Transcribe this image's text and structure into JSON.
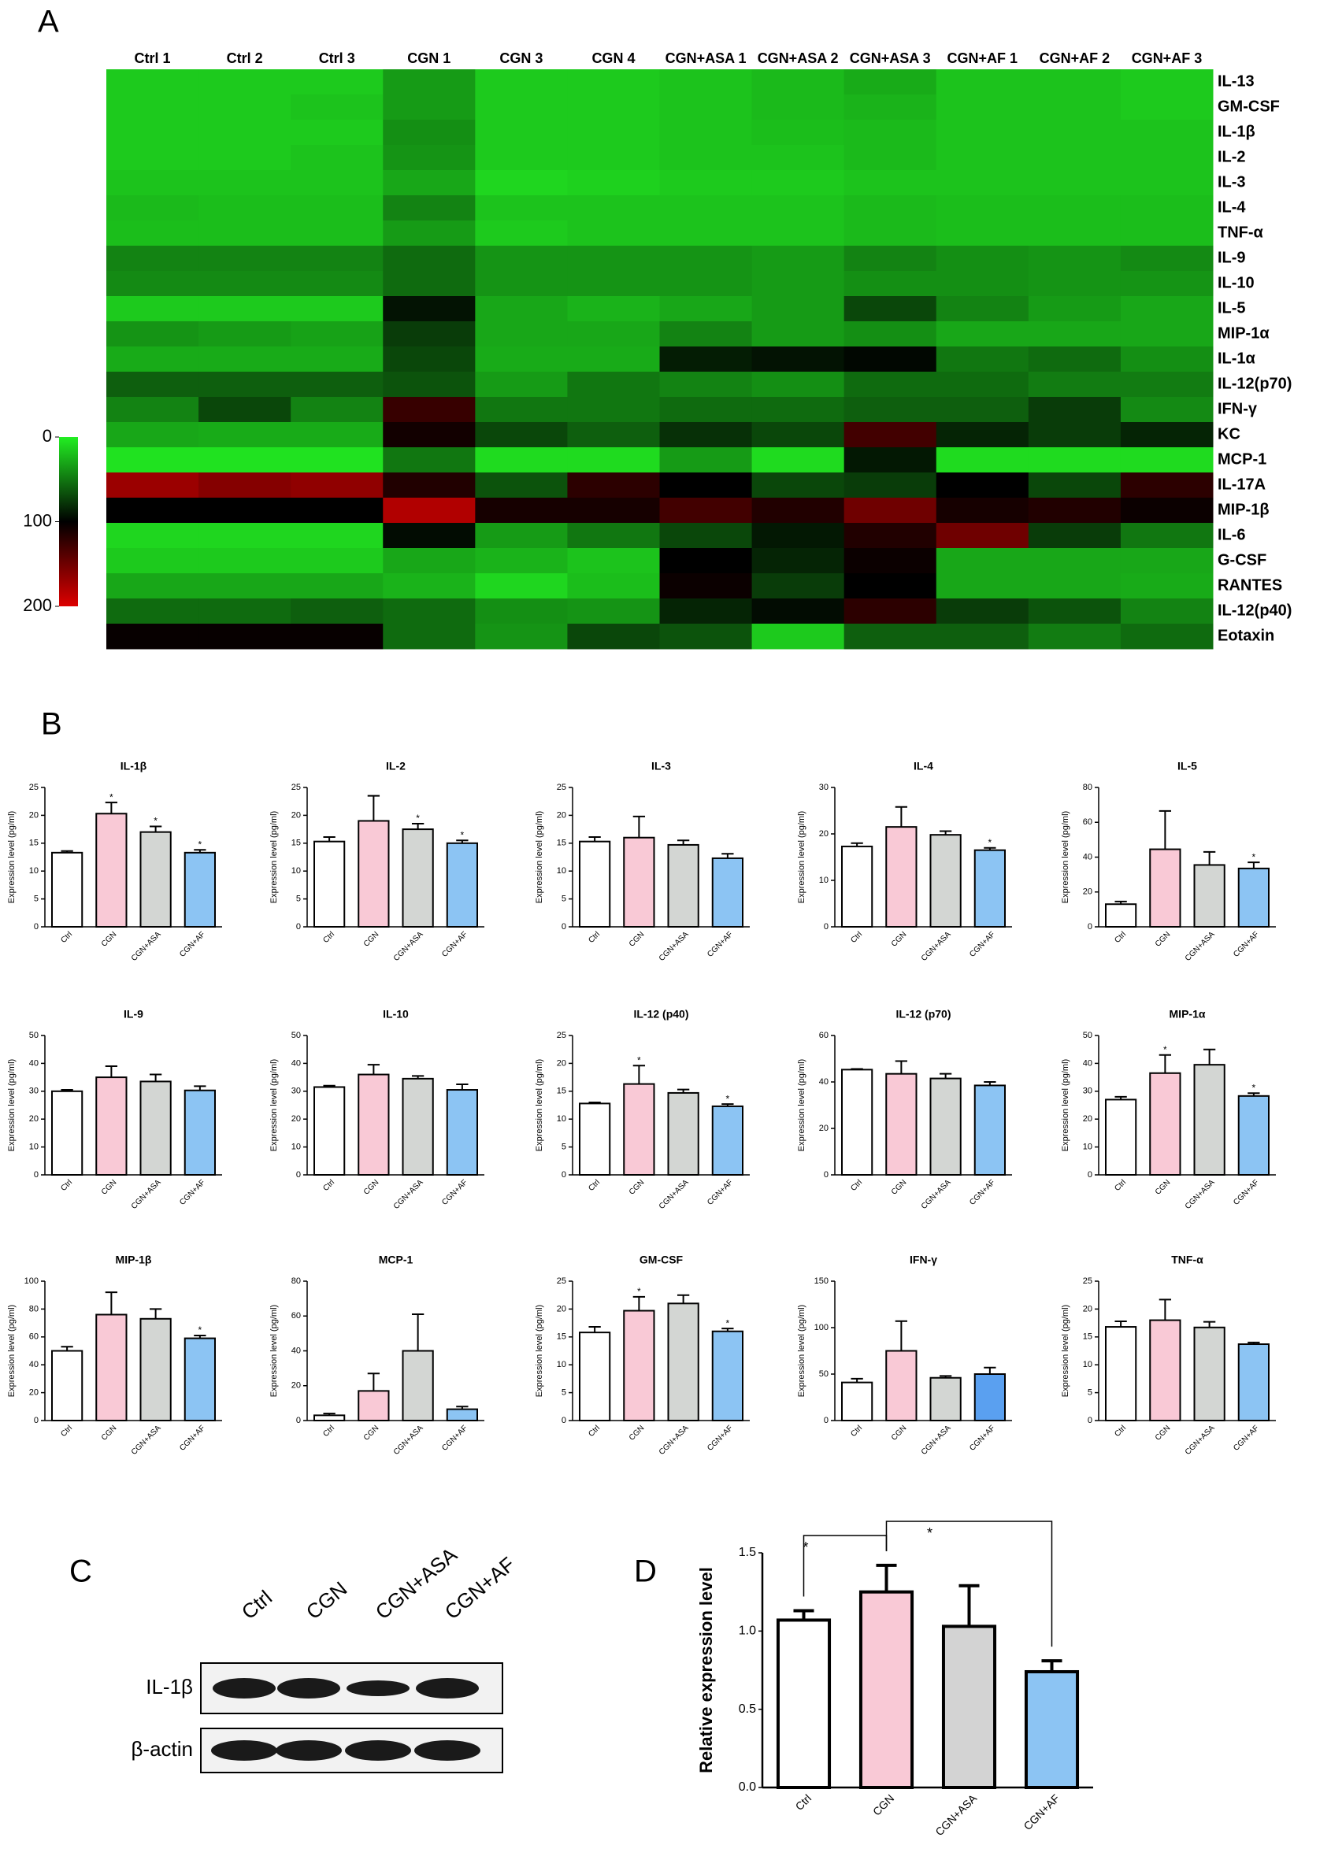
{
  "panel_labels": [
    "A",
    "B",
    "C",
    "D"
  ],
  "blot": {
    "lanes": [
      "Ctrl",
      "CGN",
      "CGN+ASA",
      "CGN+AF"
    ],
    "rows": [
      "IL-1β",
      "β-actin"
    ]
  },
  "chart_data": [
    {
      "type": "heatmap",
      "categories": [
        "Ctrl 1",
        "Ctrl  2",
        "Ctrl  3",
        "CGN 1",
        "CGN 3",
        "CGN 4",
        "CGN+ASA 1",
        "CGN+ASA 2",
        "CGN+ASA 3",
        "CGN+AF 1",
        "CGN+AF 2",
        "CGN+AF 3"
      ],
      "rows": [
        "IL-13",
        "GM-CSF",
        "IL-1β",
        "IL-2",
        "IL-3",
        "IL-4",
        "TNF-α",
        "IL-9",
        "IL-10",
        "IL-5",
        "MIP-1α",
        "IL-1α",
        "IL-12(p70)",
        "IFN-γ",
        "KC",
        "MCP-1",
        "IL-17A",
        "MIP-1β",
        "IL-6",
        "G-CSF",
        "RANTES",
        "IL-12(p40)",
        "Eotaxin"
      ],
      "values": [
        [
          15,
          15,
          15,
          35,
          15,
          15,
          18,
          22,
          28,
          18,
          18,
          15
        ],
        [
          15,
          15,
          18,
          35,
          15,
          15,
          18,
          22,
          25,
          18,
          18,
          15
        ],
        [
          15,
          15,
          15,
          40,
          15,
          15,
          18,
          20,
          22,
          18,
          18,
          18
        ],
        [
          15,
          15,
          18,
          38,
          15,
          15,
          18,
          18,
          22,
          18,
          18,
          18
        ],
        [
          18,
          18,
          18,
          30,
          10,
          12,
          15,
          15,
          18,
          18,
          18,
          18
        ],
        [
          22,
          20,
          20,
          45,
          18,
          18,
          18,
          18,
          22,
          20,
          20,
          20
        ],
        [
          20,
          20,
          20,
          35,
          15,
          18,
          18,
          18,
          22,
          20,
          20,
          20
        ],
        [
          45,
          45,
          45,
          55,
          38,
          38,
          38,
          35,
          45,
          40,
          38,
          42
        ],
        [
          42,
          42,
          42,
          55,
          38,
          38,
          38,
          35,
          40,
          40,
          38,
          38
        ],
        [
          15,
          15,
          15,
          92,
          30,
          25,
          30,
          35,
          70,
          45,
          35,
          30
        ],
        [
          38,
          35,
          32,
          75,
          30,
          30,
          45,
          35,
          40,
          30,
          30,
          30
        ],
        [
          28,
          28,
          28,
          70,
          28,
          28,
          88,
          92,
          97,
          50,
          55,
          40
        ],
        [
          60,
          60,
          60,
          65,
          35,
          50,
          45,
          40,
          55,
          55,
          48,
          48
        ],
        [
          45,
          70,
          45,
          125,
          50,
          50,
          55,
          55,
          60,
          60,
          75,
          42
        ],
        [
          30,
          28,
          28,
          108,
          70,
          60,
          80,
          70,
          130,
          85,
          75,
          85
        ],
        [
          5,
          5,
          5,
          50,
          8,
          8,
          35,
          8,
          90,
          8,
          8,
          8
        ],
        [
          170,
          160,
          165,
          115,
          65,
          120,
          100,
          70,
          75,
          100,
          70,
          120
        ],
        [
          100,
          100,
          100,
          180,
          110,
          110,
          130,
          115,
          150,
          110,
          115,
          105
        ],
        [
          10,
          10,
          10,
          95,
          35,
          50,
          70,
          90,
          115,
          150,
          75,
          50
        ],
        [
          15,
          15,
          15,
          30,
          25,
          18,
          100,
          85,
          105,
          30,
          30,
          30
        ],
        [
          30,
          30,
          30,
          25,
          10,
          20,
          105,
          75,
          100,
          30,
          30,
          28
        ],
        [
          55,
          55,
          60,
          55,
          40,
          38,
          85,
          95,
          120,
          75,
          65,
          45
        ],
        [
          103,
          103,
          103,
          55,
          38,
          70,
          65,
          15,
          60,
          60,
          48,
          55
        ]
      ],
      "clim": [
        0,
        200
      ],
      "cticks": [
        0,
        100,
        200
      ],
      "colorscale": [
        "#22ee22",
        "#000000",
        "#dd0000"
      ]
    },
    {
      "type": "bar",
      "title": "IL-1β",
      "y_label": "Expression level (pg/ml)",
      "categories": [
        "Ctrl",
        "CGN",
        "CGN+ASA",
        "CGN+AF"
      ],
      "values": [
        13.3,
        20.3,
        17,
        13.3
      ],
      "errors": [
        0.3,
        2,
        1,
        0.5
      ],
      "significance": [
        null,
        "*",
        "*",
        "*"
      ],
      "colors": [
        "#ffffff",
        "#f9c9d6",
        "#d3d6d3",
        "#8cc4f3"
      ],
      "ylim": [
        0,
        25
      ],
      "yticks": [
        0,
        5,
        10,
        15,
        20,
        25
      ]
    },
    {
      "type": "bar",
      "title": "IL-2",
      "y_label": "Expression level (pg/ml)",
      "categories": [
        "Ctrl",
        "CGN",
        "CGN+ASA",
        "CGN+AF"
      ],
      "values": [
        15.3,
        19,
        17.5,
        15
      ],
      "errors": [
        0.8,
        4.5,
        1,
        0.5
      ],
      "significance": [
        null,
        null,
        "*",
        "*"
      ],
      "colors": [
        "#ffffff",
        "#f9c9d6",
        "#d3d6d3",
        "#8cc4f3"
      ],
      "ylim": [
        0,
        25
      ],
      "yticks": [
        0,
        5,
        10,
        15,
        20,
        25
      ]
    },
    {
      "type": "bar",
      "title": "IL-3",
      "y_label": "Expression level (pg/ml)",
      "categories": [
        "Ctrl",
        "CGN",
        "CGN+ASA",
        "CGN+AF"
      ],
      "values": [
        15.3,
        16,
        14.7,
        12.3
      ],
      "errors": [
        0.8,
        3.8,
        0.8,
        0.8
      ],
      "colors": [
        "#ffffff",
        "#f9c9d6",
        "#d3d6d3",
        "#8cc4f3"
      ],
      "ylim": [
        0,
        25
      ],
      "yticks": [
        0,
        5,
        10,
        15,
        20,
        25
      ]
    },
    {
      "type": "bar",
      "title": "IL-4",
      "y_label": "Expression level (pg/ml)",
      "categories": [
        "Ctrl",
        "CGN",
        "CGN+ASA",
        "CGN+AF"
      ],
      "values": [
        17.3,
        21.5,
        19.8,
        16.5
      ],
      "errors": [
        0.7,
        4.3,
        0.8,
        0.5
      ],
      "significance": [
        null,
        null,
        null,
        "*"
      ],
      "colors": [
        "#ffffff",
        "#f9c9d6",
        "#d3d6d3",
        "#8cc4f3"
      ],
      "ylim": [
        0,
        30
      ],
      "yticks": [
        0,
        10,
        20,
        30
      ]
    },
    {
      "type": "bar",
      "title": "IL-5",
      "y_label": "Expression level (pg/ml)",
      "categories": [
        "Ctrl",
        "CGN",
        "CGN+ASA",
        "CGN+AF"
      ],
      "values": [
        13,
        44.5,
        35.5,
        33.5
      ],
      "errors": [
        1.5,
        22,
        7.5,
        3.5
      ],
      "significance": [
        null,
        null,
        null,
        "*"
      ],
      "colors": [
        "#ffffff",
        "#f9c9d6",
        "#d3d6d3",
        "#8cc4f3"
      ],
      "ylim": [
        0,
        80
      ],
      "yticks": [
        0,
        20,
        40,
        60,
        80
      ]
    },
    {
      "type": "bar",
      "title": "IL-9",
      "y_label": "Expression level (pg/ml)",
      "categories": [
        "Ctrl",
        "CGN",
        "CGN+ASA",
        "CGN+AF"
      ],
      "values": [
        30,
        35,
        33.5,
        30.3
      ],
      "errors": [
        0.5,
        4,
        2.5,
        1.5
      ],
      "colors": [
        "#ffffff",
        "#f9c9d6",
        "#d3d6d3",
        "#8cc4f3"
      ],
      "ylim": [
        0,
        50
      ],
      "yticks": [
        0,
        10,
        20,
        30,
        40,
        50
      ]
    },
    {
      "type": "bar",
      "title": "IL-10",
      "y_label": "Expression level (pg/ml)",
      "categories": [
        "Ctrl",
        "CGN",
        "CGN+ASA",
        "CGN+AF"
      ],
      "values": [
        31.5,
        36,
        34.5,
        30.5
      ],
      "errors": [
        0.5,
        3.5,
        1,
        2
      ],
      "colors": [
        "#ffffff",
        "#f9c9d6",
        "#d3d6d3",
        "#8cc4f3"
      ],
      "ylim": [
        0,
        50
      ],
      "yticks": [
        0,
        10,
        20,
        30,
        40,
        50
      ]
    },
    {
      "type": "bar",
      "title": "IL-12 (p40)",
      "y_label": "Expression level (pg/ml)",
      "categories": [
        "Ctrl",
        "CGN",
        "CGN+ASA",
        "CGN+AF"
      ],
      "values": [
        12.8,
        16.3,
        14.7,
        12.3
      ],
      "errors": [
        0.2,
        3.3,
        0.6,
        0.4
      ],
      "significance": [
        null,
        "*",
        null,
        "*"
      ],
      "colors": [
        "#ffffff",
        "#f9c9d6",
        "#d3d6d3",
        "#8cc4f3"
      ],
      "ylim": [
        0,
        25
      ],
      "yticks": [
        0,
        5,
        10,
        15,
        20,
        25
      ]
    },
    {
      "type": "bar",
      "title": "IL-12 (p70)",
      "y_label": "Expression level (pg/ml)",
      "categories": [
        "Ctrl",
        "CGN",
        "CGN+ASA",
        "CGN+AF"
      ],
      "values": [
        45.3,
        43.5,
        41.5,
        38.5
      ],
      "errors": [
        0.3,
        5.5,
        2,
        1.5
      ],
      "colors": [
        "#ffffff",
        "#f9c9d6",
        "#d3d6d3",
        "#8cc4f3"
      ],
      "ylim": [
        0,
        60
      ],
      "yticks": [
        0,
        20,
        40,
        60
      ]
    },
    {
      "type": "bar",
      "title": "MIP-1α",
      "y_label": "Expression level (pg/ml)",
      "categories": [
        "Ctrl",
        "CGN",
        "CGN+ASA",
        "CGN+AF"
      ],
      "values": [
        27,
        36.5,
        39.5,
        28.3
      ],
      "errors": [
        1,
        6.5,
        5.5,
        1
      ],
      "significance": [
        null,
        "*",
        null,
        "*"
      ],
      "colors": [
        "#ffffff",
        "#f9c9d6",
        "#d3d6d3",
        "#8cc4f3"
      ],
      "ylim": [
        0,
        50
      ],
      "yticks": [
        0,
        10,
        20,
        30,
        40,
        50
      ]
    },
    {
      "type": "bar",
      "title": "MIP-1β",
      "y_label": "Expression level (pg/ml)",
      "categories": [
        "Ctrl",
        "CGN",
        "CGN+ASA",
        "CGN+AF"
      ],
      "values": [
        50,
        76,
        73,
        59
      ],
      "errors": [
        3,
        16,
        7,
        2
      ],
      "significance": [
        null,
        null,
        null,
        "*"
      ],
      "colors": [
        "#ffffff",
        "#f9c9d6",
        "#d3d6d3",
        "#8cc4f3"
      ],
      "ylim": [
        0,
        100
      ],
      "yticks": [
        0,
        20,
        40,
        60,
        80,
        100
      ]
    },
    {
      "type": "bar",
      "title": "MCP-1",
      "y_label": "Expression level (pg/ml)",
      "categories": [
        "Ctrl",
        "CGN",
        "CGN+ASA",
        "CGN+AF"
      ],
      "values": [
        3,
        17,
        40,
        6.5
      ],
      "errors": [
        1,
        10,
        21,
        1.5
      ],
      "colors": [
        "#ffffff",
        "#f9c9d6",
        "#d3d6d3",
        "#8cc4f3"
      ],
      "ylim": [
        0,
        80
      ],
      "yticks": [
        0,
        20,
        40,
        60,
        80
      ]
    },
    {
      "type": "bar",
      "title": "GM-CSF",
      "y_label": "Expression level (pg/ml)",
      "categories": [
        "Ctrl",
        "CGN",
        "CGN+ASA",
        "CGN+AF"
      ],
      "values": [
        15.8,
        19.7,
        21,
        16
      ],
      "errors": [
        1,
        2.5,
        1.5,
        0.5
      ],
      "significance": [
        null,
        "*",
        null,
        "*"
      ],
      "colors": [
        "#ffffff",
        "#f9c9d6",
        "#d3d6d3",
        "#8cc4f3"
      ],
      "ylim": [
        0,
        25
      ],
      "yticks": [
        0,
        5,
        10,
        15,
        20,
        25
      ]
    },
    {
      "type": "bar",
      "title": "IFN-γ",
      "y_label": "Expression level (pg/ml)",
      "categories": [
        "Ctrl",
        "CGN",
        "CGN+ASA",
        "CGN+AF"
      ],
      "values": [
        41,
        75,
        46,
        50
      ],
      "errors": [
        4,
        32,
        2,
        7
      ],
      "colors": [
        "#ffffff",
        "#f9c9d6",
        "#d3d6d3",
        "#5aa0f0"
      ],
      "ylim": [
        0,
        150
      ],
      "yticks": [
        0,
        50,
        100,
        150
      ]
    },
    {
      "type": "bar",
      "title": "TNF-α",
      "y_label": "Expression level (pg/ml)",
      "categories": [
        "Ctrl",
        "CGN",
        "CGN+ASA",
        "CGN+AF"
      ],
      "values": [
        16.8,
        18,
        16.7,
        13.7
      ],
      "errors": [
        1,
        3.7,
        1,
        0.3
      ],
      "colors": [
        "#ffffff",
        "#f9c9d6",
        "#d3d6d3",
        "#8cc4f3"
      ],
      "ylim": [
        0,
        25
      ],
      "yticks": [
        0,
        5,
        10,
        15,
        20,
        25
      ]
    },
    {
      "type": "bar",
      "y_label": "Relative expression level",
      "categories": [
        "Ctrl",
        "CGN",
        "CGN+ASA",
        "CGN+AF"
      ],
      "values": [
        1.07,
        1.25,
        1.03,
        0.74
      ],
      "errors": [
        0.06,
        0.17,
        0.26,
        0.07
      ],
      "colors": [
        "#ffffff",
        "#f9c9d6",
        "#d3d3d3",
        "#8cc4f3"
      ],
      "ylim": [
        0,
        1.5
      ],
      "yticks": [
        {
          "value": 0,
          "label": "0.0"
        },
        {
          "value": 0.5,
          "label": "0.5"
        },
        {
          "value": 1,
          "label": "1.0"
        },
        {
          "value": 1.5,
          "label": "1.5"
        }
      ],
      "comparisons": [
        {
          "pair": [
            0,
            1
          ],
          "label": "*"
        },
        {
          "pair": [
            1,
            3
          ],
          "label": "*"
        }
      ]
    }
  ]
}
